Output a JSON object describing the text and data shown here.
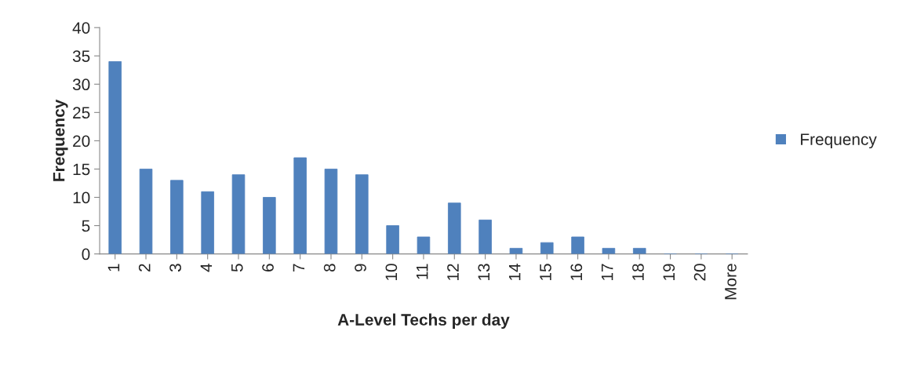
{
  "chart_data": {
    "type": "bar",
    "xlabel": "A-Level Techs per day",
    "ylabel": "Frequency",
    "categories": [
      "1",
      "2",
      "3",
      "4",
      "5",
      "6",
      "7",
      "8",
      "9",
      "10",
      "11",
      "12",
      "13",
      "14",
      "15",
      "16",
      "17",
      "18",
      "19",
      "20",
      "More"
    ],
    "series": [
      {
        "name": "Frequency",
        "color": "#4f81bd",
        "values": [
          34,
          15,
          13,
          11,
          14,
          10,
          17,
          15,
          14,
          5,
          3,
          9,
          6,
          1,
          2,
          3,
          1,
          1,
          0,
          0,
          0
        ]
      }
    ],
    "ylim": [
      0,
      40
    ],
    "yticks": [
      0,
      5,
      10,
      15,
      20,
      25,
      30,
      35,
      40
    ],
    "grid": false,
    "legend": "right"
  }
}
